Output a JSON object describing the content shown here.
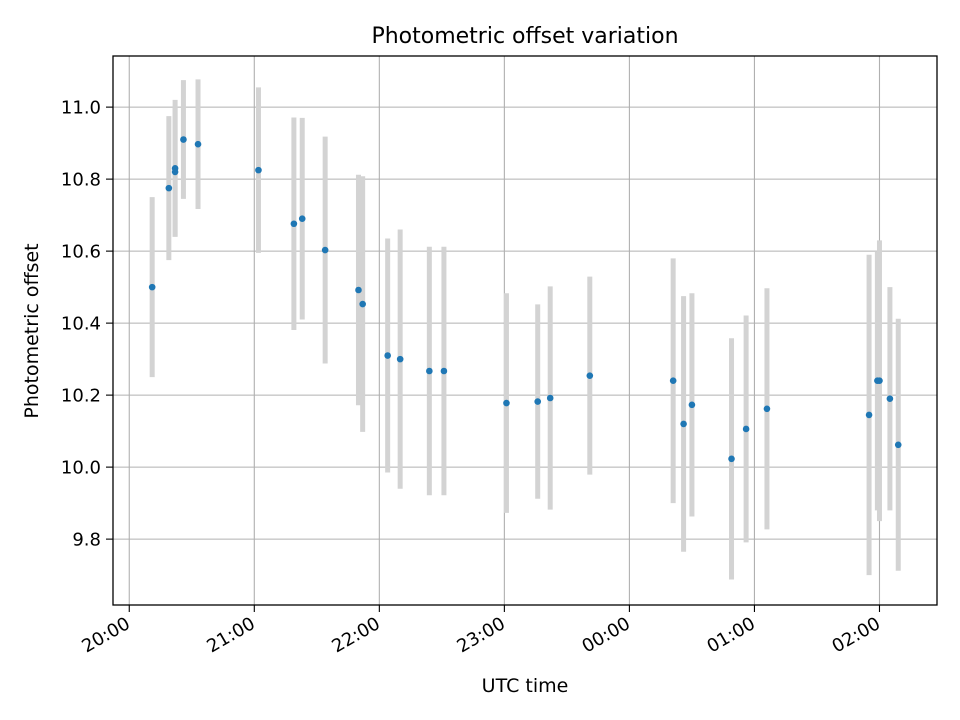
{
  "chart_data": {
    "type": "scatter",
    "title": "Photometric offset variation",
    "xlabel": "UTC time",
    "ylabel": "Photometric offset",
    "x_ticks": [
      "20:00",
      "21:00",
      "22:00",
      "23:00",
      "00:00",
      "01:00",
      "02:00"
    ],
    "y_ticks": [
      "9.8",
      "10.0",
      "10.2",
      "10.4",
      "10.6",
      "10.8",
      "11.0"
    ],
    "x_tick_hours": [
      20,
      21,
      22,
      23,
      24,
      25,
      26
    ],
    "y_tick_values": [
      9.8,
      10.0,
      10.2,
      10.4,
      10.6,
      10.8,
      11.0
    ],
    "xlim_hours": [
      19.87,
      26.46
    ],
    "ylim": [
      9.617,
      11.142
    ],
    "grid": true,
    "x_tick_rotation_deg": 30,
    "marker_color": "#1f77b4",
    "errorbar_color": "#d3d3d3",
    "points": [
      {
        "t": "20:11",
        "y": 10.5,
        "yerr": 0.25
      },
      {
        "t": "20:19",
        "y": 10.775,
        "yerr": 0.2
      },
      {
        "t": "20:22",
        "y": 10.83,
        "yerr": 0.19
      },
      {
        "t": "20:22",
        "y": 10.82,
        "yerr": 0.18
      },
      {
        "t": "20:26",
        "y": 10.91,
        "yerr": 0.165
      },
      {
        "t": "20:33",
        "y": 10.897,
        "yerr": 0.18
      },
      {
        "t": "21:02",
        "y": 10.825,
        "yerr": 0.23
      },
      {
        "t": "21:19",
        "y": 10.676,
        "yerr": 0.295
      },
      {
        "t": "21:23",
        "y": 10.69,
        "yerr": 0.28
      },
      {
        "t": "21:34",
        "y": 10.603,
        "yerr": 0.315
      },
      {
        "t": "21:50",
        "y": 10.492,
        "yerr": 0.32
      },
      {
        "t": "21:52",
        "y": 10.453,
        "yerr": 0.355
      },
      {
        "t": "22:04",
        "y": 10.31,
        "yerr": 0.325
      },
      {
        "t": "22:10",
        "y": 10.3,
        "yerr": 0.36
      },
      {
        "t": "22:24",
        "y": 10.267,
        "yerr": 0.345
      },
      {
        "t": "22:31",
        "y": 10.267,
        "yerr": 0.345
      },
      {
        "t": "23:01",
        "y": 10.178,
        "yerr": 0.305
      },
      {
        "t": "23:16",
        "y": 10.182,
        "yerr": 0.27
      },
      {
        "t": "23:22",
        "y": 10.192,
        "yerr": 0.31
      },
      {
        "t": "23:41",
        "y": 10.254,
        "yerr": 0.275
      },
      {
        "t": "00:21",
        "y": 10.24,
        "yerr": 0.34
      },
      {
        "t": "00:26",
        "y": 10.12,
        "yerr": 0.355
      },
      {
        "t": "00:30",
        "y": 10.173,
        "yerr": 0.31
      },
      {
        "t": "00:49",
        "y": 10.023,
        "yerr": 0.335
      },
      {
        "t": "00:56",
        "y": 10.106,
        "yerr": 0.315
      },
      {
        "t": "01:06",
        "y": 10.162,
        "yerr": 0.335
      },
      {
        "t": "01:55",
        "y": 10.145,
        "yerr": 0.445
      },
      {
        "t": "01:59",
        "y": 10.24,
        "yerr": 0.36
      },
      {
        "t": "02:00",
        "y": 10.24,
        "yerr": 0.39
      },
      {
        "t": "02:05",
        "y": 10.19,
        "yerr": 0.31
      },
      {
        "t": "02:09",
        "y": 10.062,
        "yerr": 0.35
      }
    ]
  }
}
